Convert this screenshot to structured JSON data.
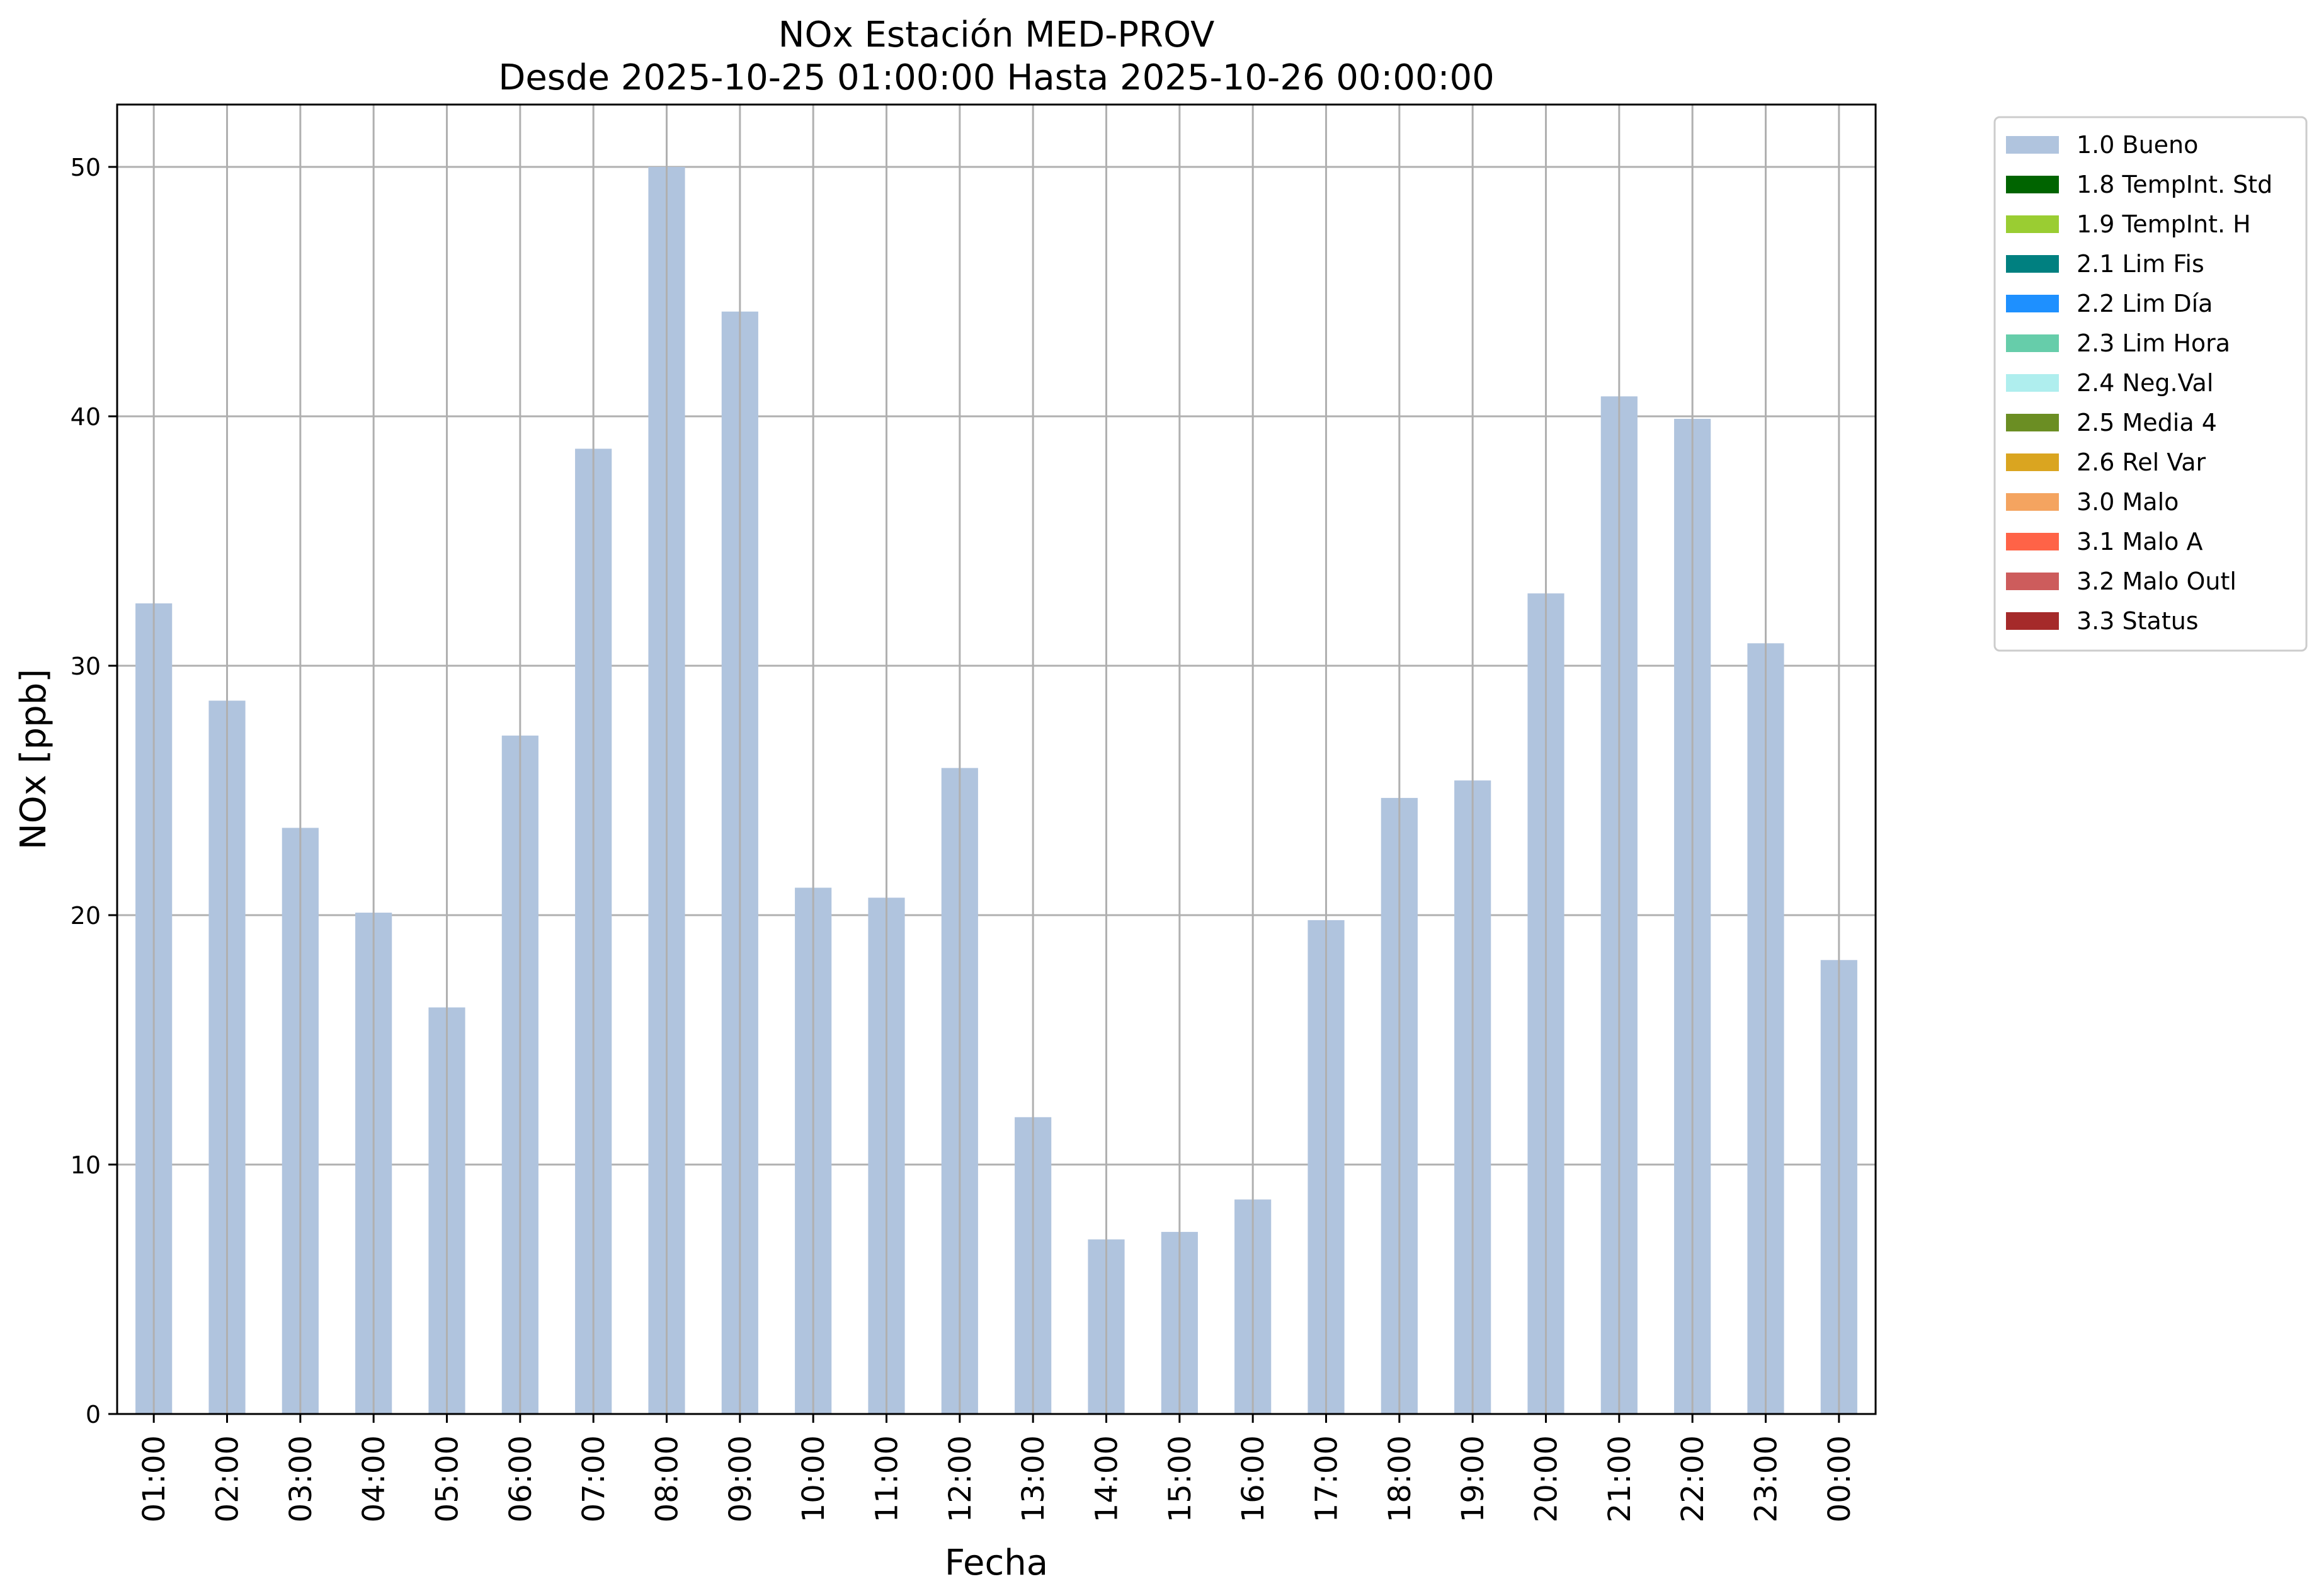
{
  "chart_data": {
    "type": "bar",
    "title": "NOx Estación MED-PROV",
    "subtitle": "Desde 2025-10-25 01:00:00 Hasta 2025-10-26 00:00:00",
    "xlabel": "Fecha",
    "ylabel": "NOx [ppb]",
    "ylim": [
      0,
      52.5
    ],
    "yticks": [
      0,
      10,
      20,
      30,
      40,
      50
    ],
    "grid": true,
    "legend_position": "outside-top-right",
    "categories": [
      "01:00",
      "02:00",
      "03:00",
      "04:00",
      "05:00",
      "06:00",
      "07:00",
      "08:00",
      "09:00",
      "10:00",
      "11:00",
      "12:00",
      "13:00",
      "14:00",
      "15:00",
      "16:00",
      "17:00",
      "18:00",
      "19:00",
      "20:00",
      "21:00",
      "22:00",
      "23:00",
      "00:00"
    ],
    "series": [
      {
        "name": "1.0 Bueno",
        "color": "#b0c4de",
        "values": [
          32.5,
          28.6,
          23.5,
          20.1,
          16.3,
          27.2,
          38.7,
          50.0,
          44.2,
          21.1,
          20.7,
          25.9,
          11.9,
          7.0,
          7.3,
          8.6,
          19.8,
          24.7,
          25.4,
          32.9,
          40.8,
          39.9,
          30.9,
          18.2
        ]
      }
    ],
    "legend": [
      {
        "label": "1.0 Bueno",
        "color": "#b0c4de"
      },
      {
        "label": "1.8 TempInt. Std",
        "color": "#006400"
      },
      {
        "label": "1.9 TempInt. H",
        "color": "#9acd32"
      },
      {
        "label": "2.1 Lim Fis",
        "color": "#008080"
      },
      {
        "label": "2.2 Lim Día",
        "color": "#1e90ff"
      },
      {
        "label": "2.3 Lim Hora",
        "color": "#66cdaa"
      },
      {
        "label": "2.4 Neg.Val",
        "color": "#afeeee"
      },
      {
        "label": "2.5 Media 4",
        "color": "#6b8e23"
      },
      {
        "label": "2.6 Rel Var",
        "color": "#daa520"
      },
      {
        "label": "3.0 Malo",
        "color": "#f4a460"
      },
      {
        "label": "3.1 Malo A",
        "color": "#ff6347"
      },
      {
        "label": "3.2 Malo Outl",
        "color": "#cd5c5c"
      },
      {
        "label": "3.3 Status",
        "color": "#a52a2a"
      }
    ]
  }
}
